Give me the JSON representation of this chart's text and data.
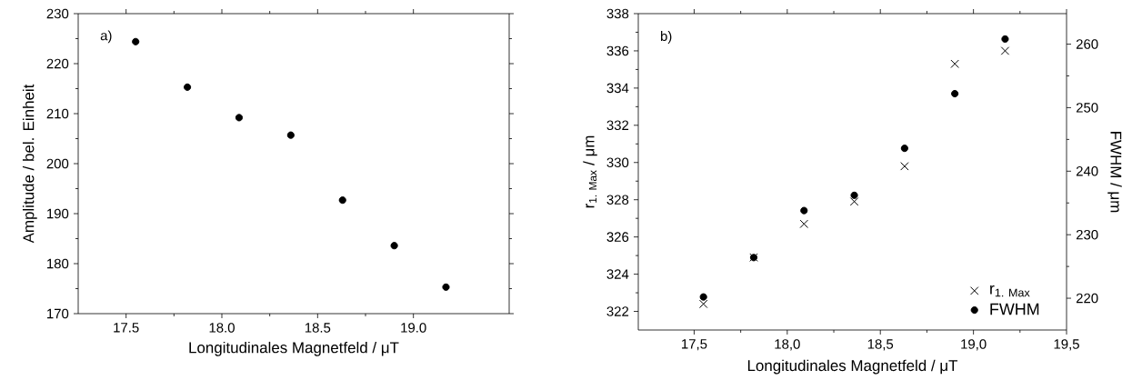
{
  "chart_data": [
    {
      "type": "scatter",
      "xlabel": "Longitudinales Magnetfeld / μT",
      "ylabel": "Amplitude  / bel. Einheit",
      "annotations": [
        "a)"
      ],
      "x": [
        17.55,
        17.82,
        18.09,
        18.36,
        18.63,
        18.9,
        19.17
      ],
      "series": [
        {
          "color": "#000000",
          "marker": "circle",
          "values": [
            224.4,
            215.3,
            209.2,
            205.7,
            192.7,
            183.6,
            175.3
          ]
        }
      ],
      "xlim": [
        17.25,
        19.5
      ],
      "xticks": [
        17.5,
        {
          "value": 18.0,
          "label": "18.0"
        },
        18.5,
        {
          "value": 19.0,
          "label": "19.0"
        }
      ],
      "ylim": [
        170,
        230
      ],
      "yticks": [
        170,
        180,
        190,
        200,
        210,
        220,
        230
      ],
      "grid": false
    },
    {
      "type": "scatter",
      "xlabel": "Longitudinales Magnetfeld / μT",
      "ylabel": "r$_{1. Max}$ / μm",
      "y2label": "FWHM / μm",
      "annotations": [
        "b)"
      ],
      "x": [
        17.55,
        17.82,
        18.09,
        18.36,
        18.63,
        18.9,
        19.17
      ],
      "series": [
        {
          "name": "r$_{1. Max}$",
          "color": "#000000",
          "marker": "cross",
          "values": [
            322.4,
            324.9,
            326.7,
            327.9,
            329.8,
            335.3,
            336.0
          ]
        },
        {
          "name": "FWHM",
          "color": "#000000",
          "marker": "circle",
          "axis": "y2",
          "values": [
            220.2,
            226.4,
            233.8,
            236.2,
            243.6,
            252.2,
            260.8
          ]
        }
      ],
      "xlim": [
        17.2,
        19.5
      ],
      "xticks": [
        {
          "value": 17.5,
          "label": "17,5"
        },
        {
          "value": 18.0,
          "label": "18,0"
        },
        {
          "value": 18.5,
          "label": "18,5"
        },
        {
          "value": 19.0,
          "label": "19,0"
        },
        {
          "value": 19.5,
          "label": "19,5"
        }
      ],
      "ylim": [
        321,
        338
      ],
      "yticks": [
        322,
        324,
        326,
        328,
        330,
        332,
        334,
        336,
        338
      ],
      "y2lim": [
        215,
        264.8
      ],
      "y2ticks": [
        220,
        230,
        240,
        250,
        260
      ],
      "legend": "bottom right",
      "grid": false
    }
  ]
}
